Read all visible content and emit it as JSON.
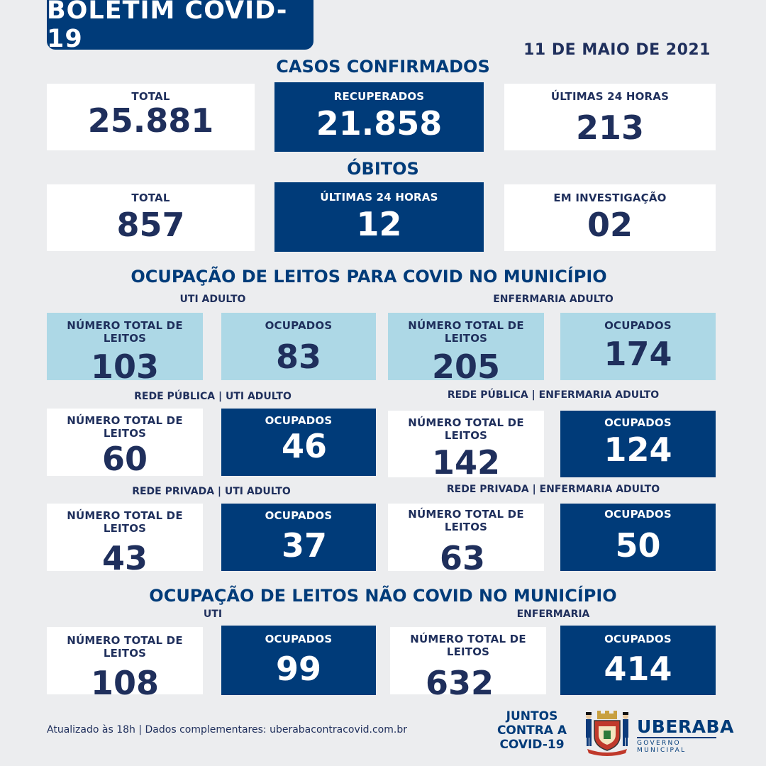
{
  "header": {
    "title": "BOLETIM COVID-19",
    "date": "11 DE MAIO DE 2021"
  },
  "casos": {
    "title": "CASOS CONFIRMADOS",
    "total_label": "TOTAL",
    "total_value": "25.881",
    "recuperados_label": "RECUPERADOS",
    "recuperados_value": "21.858",
    "ultimas_label": "ÚLTIMAS 24 HORAS",
    "ultimas_value": "213"
  },
  "obitos": {
    "title": "ÓBITOS",
    "total_label": "TOTAL",
    "total_value": "857",
    "ultimas_label": "ÚLTIMAS 24 HORAS",
    "ultimas_value": "12",
    "investigacao_label": "EM INVESTIGAÇÃO",
    "investigacao_value": "02"
  },
  "covid_leitos": {
    "title": "OCUPAÇÃO DE LEITOS PARA COVID NO MUNICÍPIO",
    "uti": {
      "title": "UTI ADULTO",
      "total_label": "NÚMERO TOTAL DE LEITOS",
      "total_value": "103",
      "ocupados_label": "OCUPADOS",
      "ocupados_value": "83"
    },
    "enfermaria": {
      "title": "ENFERMARIA ADULTO",
      "total_label": "NÚMERO TOTAL DE LEITOS",
      "total_value": "205",
      "ocupados_label": "OCUPADOS",
      "ocupados_value": "174"
    },
    "publica_uti": {
      "title": "REDE PÚBLICA | UTI ADULTO",
      "total_label": "NÚMERO TOTAL DE LEITOS",
      "total_value": "60",
      "ocupados_label": "OCUPADOS",
      "ocupados_value": "46"
    },
    "publica_enf": {
      "title": "REDE PÚBLICA | ENFERMARIA ADULTO",
      "total_label": "NÚMERO TOTAL DE LEITOS",
      "total_value": "142",
      "ocupados_label": "OCUPADOS",
      "ocupados_value": "124"
    },
    "privada_uti": {
      "title": "REDE PRIVADA | UTI ADULTO",
      "total_label": "NÚMERO TOTAL DE LEITOS",
      "total_value": "43",
      "ocupados_label": "OCUPADOS",
      "ocupados_value": "37"
    },
    "privada_enf": {
      "title": "REDE PRIVADA | ENFERMARIA ADULTO",
      "total_label": "NÚMERO TOTAL DE LEITOS",
      "total_value": "63",
      "ocupados_label": "OCUPADOS",
      "ocupados_value": "50"
    }
  },
  "nao_covid": {
    "title": "OCUPAÇÃO DE LEITOS NÃO COVID NO MUNICÍPIO",
    "uti": {
      "title": "UTI",
      "total_label": "NÚMERO TOTAL DE LEITOS",
      "total_value": "108",
      "ocupados_label": "OCUPADOS",
      "ocupados_value": "99"
    },
    "enfermaria": {
      "title": "ENFERMARIA",
      "total_label": "NÚMERO TOTAL DE LEITOS",
      "total_value": "632",
      "ocupados_label": "OCUPADOS",
      "ocupados_value": "414"
    }
  },
  "footer": {
    "text": "Atualizado às 18h | Dados complementares: uberabacontracovid.com.br",
    "juntos_1": "JUNTOS",
    "juntos_2": "CONTRA A",
    "juntos_3": "COVID-19",
    "city": "UBERABA",
    "gov": "GOVERNO MUNICIPAL"
  },
  "colors": {
    "navy": "#003b79",
    "light_blue": "#add8e6",
    "text": "#1f2f5c",
    "background": "#ecedef"
  }
}
